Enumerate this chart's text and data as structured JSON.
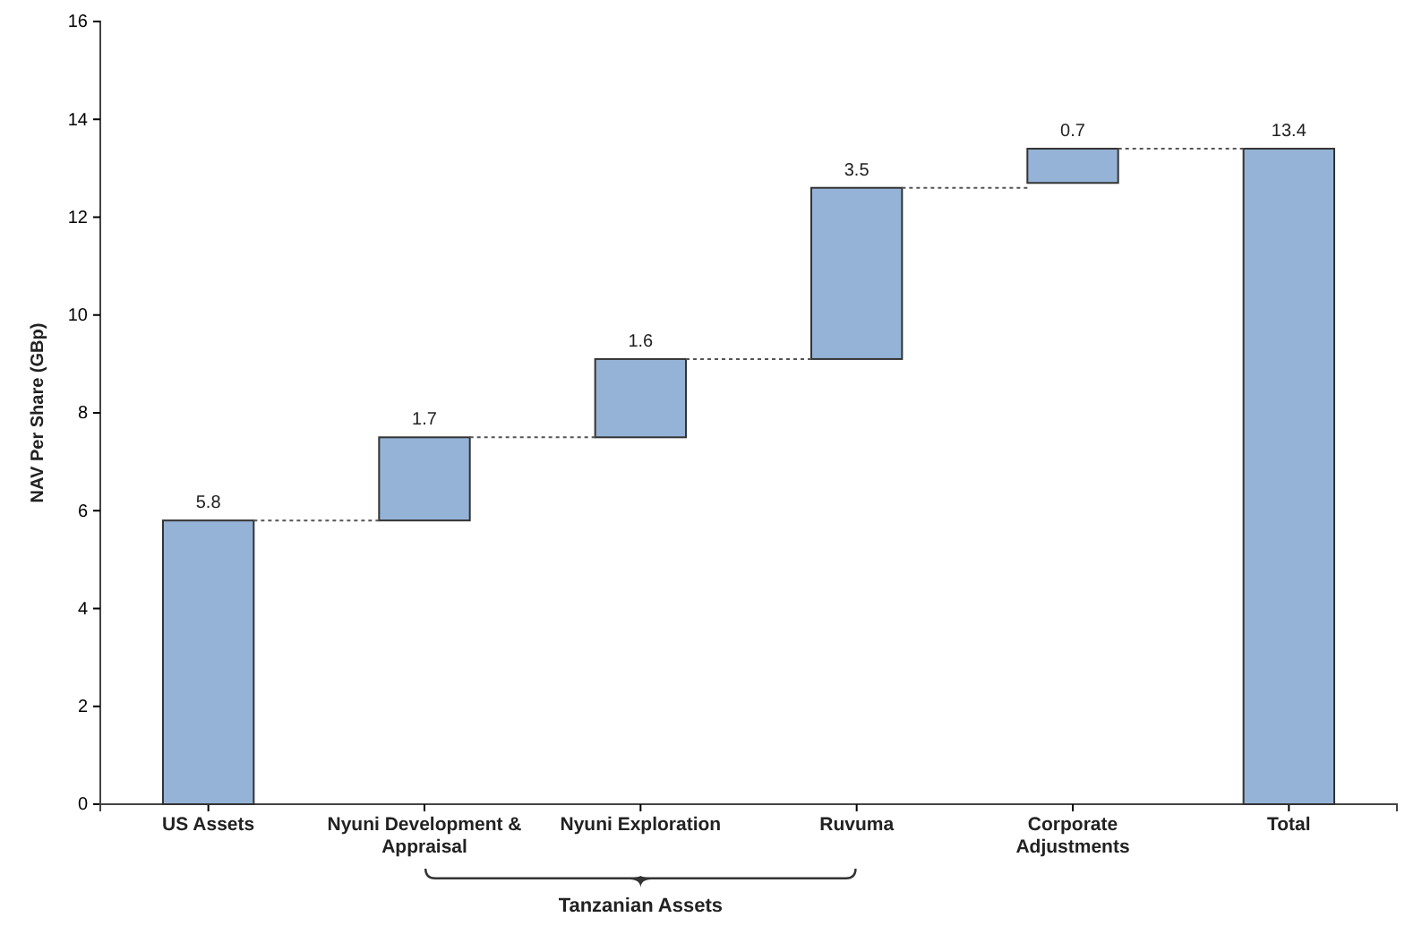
{
  "chart_data": {
    "type": "bar",
    "ylabel": "NAV Per Share (GBp)",
    "categories": [
      "US Assets",
      "Nyuni Development & Appraisal",
      "Nyuni Exploration",
      "Ruvuma",
      "Corporate Adjustments",
      "Total"
    ],
    "values": [
      5.8,
      1.7,
      1.6,
      3.5,
      0.7,
      13.4
    ],
    "base": [
      0,
      5.8,
      7.5,
      9.1,
      12.7,
      0
    ],
    "color": "#95b3d7",
    "ylim": [
      0,
      16
    ],
    "yticks": [
      0,
      2,
      4,
      6,
      8,
      10,
      12,
      14,
      16
    ],
    "data_labels": true,
    "grid": false,
    "annotations": [
      "Tanzanian Assets"
    ]
  }
}
